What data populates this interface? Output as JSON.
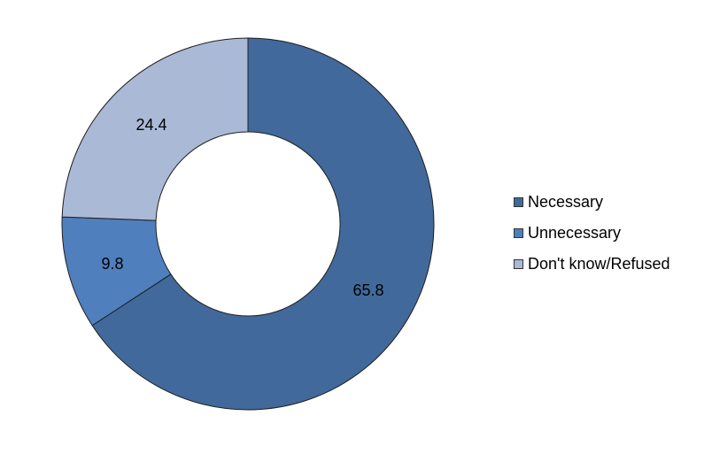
{
  "chart_data": {
    "type": "donut",
    "title": "",
    "categories": [
      "Necessary",
      "Unnecessary",
      "Don't know/Refused"
    ],
    "values": [
      65.8,
      9.8,
      24.4
    ],
    "value_labels": [
      "65.8",
      "9.8",
      "24.4"
    ],
    "colors": [
      "#41699b",
      "#4f7fbd",
      "#aab9d6"
    ],
    "start_angle_deg": 0,
    "direction": "clockwise",
    "legend_position": "right",
    "legend": [
      "Necessary",
      "Unnecessary",
      "Don't know/Refused"
    ]
  }
}
